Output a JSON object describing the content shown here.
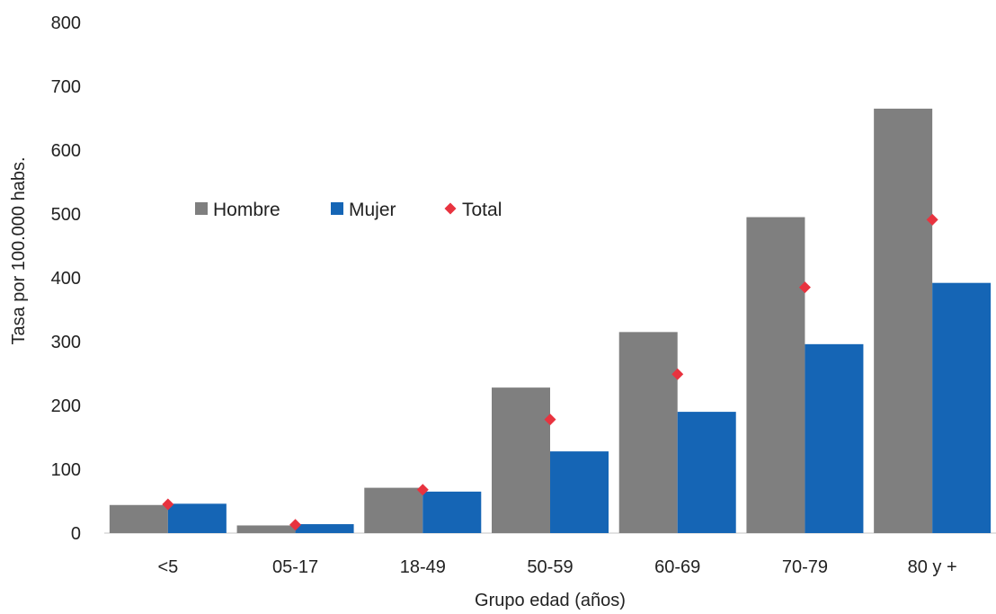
{
  "chart_data": {
    "type": "bar",
    "title": "",
    "xlabel": "Grupo edad (años)",
    "ylabel": "Tasa por 100.000 habs.",
    "ylim": [
      0,
      800
    ],
    "yticks": [
      "0",
      "100",
      "200",
      "300",
      "400",
      "500",
      "600",
      "700",
      "800"
    ],
    "categories": [
      "<5",
      "05-17",
      "18-49",
      "50-59",
      "60-69",
      "70-79",
      "80 y +"
    ],
    "series": [
      {
        "name": "Hombre",
        "kind": "bar",
        "color": "#7f7f7f",
        "values": [
          44,
          12,
          71,
          228,
          315,
          495,
          665
        ]
      },
      {
        "name": "Mujer",
        "kind": "bar",
        "color": "#1565b5",
        "values": [
          46,
          14,
          65,
          128,
          190,
          296,
          392
        ]
      },
      {
        "name": "Total",
        "kind": "marker",
        "marker": "diamond",
        "color": "#e8333f",
        "values": [
          45,
          13,
          68,
          178,
          249,
          385,
          491
        ]
      }
    ],
    "grid": false,
    "legend_position": "upper-left inside plot"
  }
}
